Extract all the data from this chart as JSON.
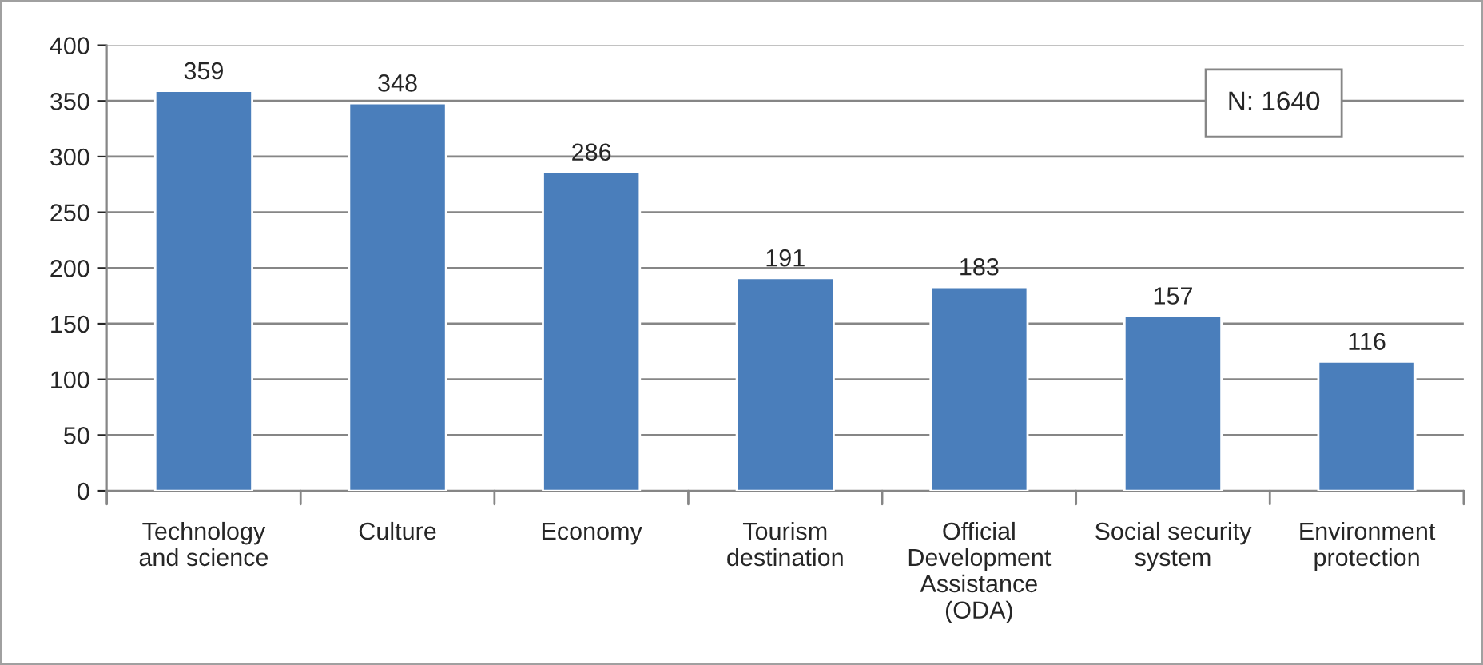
{
  "chart_data": {
    "type": "bar",
    "categories": [
      "Technology\nand science",
      "Culture",
      "Economy",
      "Tourism\ndestination",
      "Official\nDevelopment\nAssistance\n(ODA)",
      "Social security\nsystem",
      "Environment\nprotection"
    ],
    "values": [
      359,
      348,
      286,
      191,
      183,
      157,
      116
    ],
    "color": "#4a7ebb",
    "ylim": [
      0,
      400
    ],
    "yticks": [
      0,
      50,
      100,
      150,
      200,
      250,
      300,
      350,
      400
    ],
    "grid": "y",
    "data_labels": true,
    "legend": false,
    "annotations": [
      "N: 1640"
    ]
  }
}
